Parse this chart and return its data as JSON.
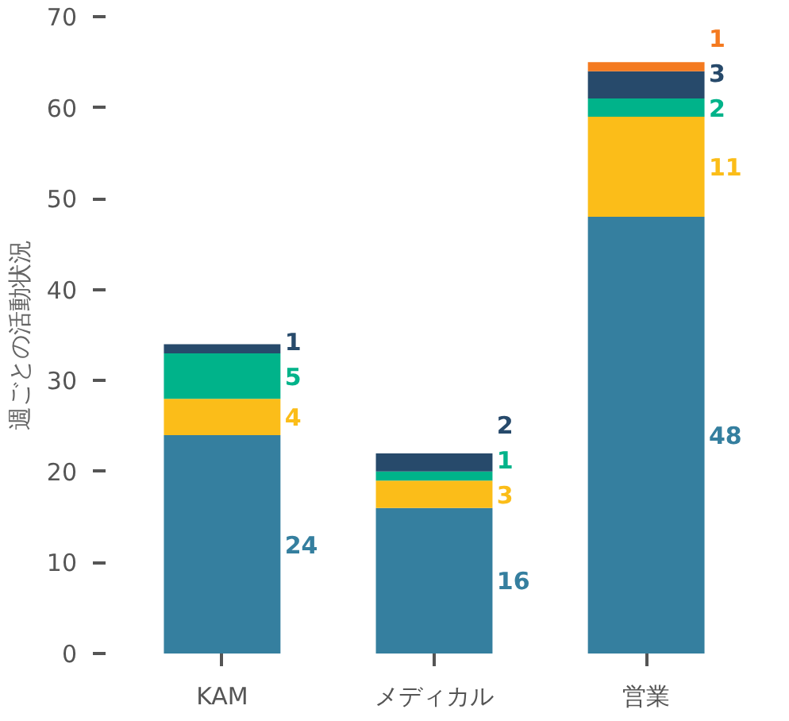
{
  "chart_data": {
    "type": "bar",
    "stacked": true,
    "ylabel": "週ごとの活動状況",
    "categories": [
      "KAM",
      "メディカル",
      "営業"
    ],
    "series": [
      {
        "color": "#357f9f",
        "values": [
          24,
          16,
          48
        ]
      },
      {
        "color": "#fbbd19",
        "values": [
          4,
          3,
          11
        ]
      },
      {
        "color": "#00b38a",
        "values": [
          5,
          1,
          2
        ]
      },
      {
        "color": "#274a6b",
        "values": [
          1,
          2,
          3
        ]
      },
      {
        "color": "#f47a20",
        "values": [
          null,
          null,
          1
        ]
      }
    ],
    "ylim": [
      0,
      70
    ],
    "yticks": [
      0,
      10,
      20,
      30,
      40,
      50,
      60,
      70
    ],
    "grid": false,
    "data_labels": true
  }
}
